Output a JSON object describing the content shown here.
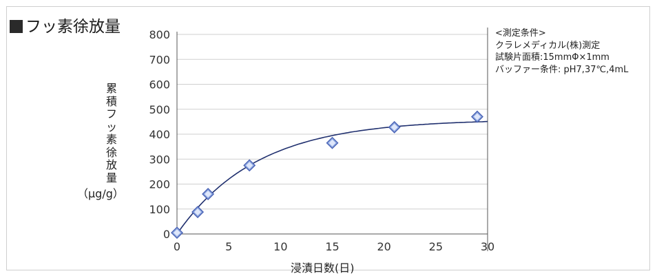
{
  "title": "フッ素徐放量",
  "conditions": {
    "heading": "<測定条件>",
    "lines": [
      "クラレメディカル(株)測定",
      "試験片面積:15mmΦ×1mm",
      "バッファー条件: pH7,37℃,4mL"
    ]
  },
  "chart_data": {
    "type": "scatter",
    "title": "フッ素徐放量",
    "ylabel_chars": [
      "累",
      "積",
      "フ",
      "ッ",
      "素",
      "徐",
      "放",
      "量"
    ],
    "ylabel_unit": "（μg/g）",
    "xlabel": "浸漬日数(日)",
    "xlim": [
      0,
      30
    ],
    "ylim": [
      0,
      800
    ],
    "xticks": [
      0,
      5,
      10,
      15,
      20,
      25,
      30
    ],
    "yticks": [
      0,
      100,
      200,
      300,
      400,
      500,
      600,
      700,
      800
    ],
    "grid": true,
    "series": [
      {
        "points": [
          {
            "x": 0,
            "y": 5
          },
          {
            "x": 2,
            "y": 88
          },
          {
            "x": 3,
            "y": 160
          },
          {
            "x": 7,
            "y": 275
          },
          {
            "x": 15,
            "y": 365
          },
          {
            "x": 21,
            "y": 428
          },
          {
            "x": 29,
            "y": 470
          }
        ],
        "marker": "diamond",
        "marker_color": "#8fa8e0"
      }
    ],
    "trendline": {
      "color": "#1f2f6e",
      "asymptote": 460,
      "rate": 0.13
    },
    "colors": {
      "grid": "#cfcfcf",
      "axis": "#555555"
    }
  }
}
